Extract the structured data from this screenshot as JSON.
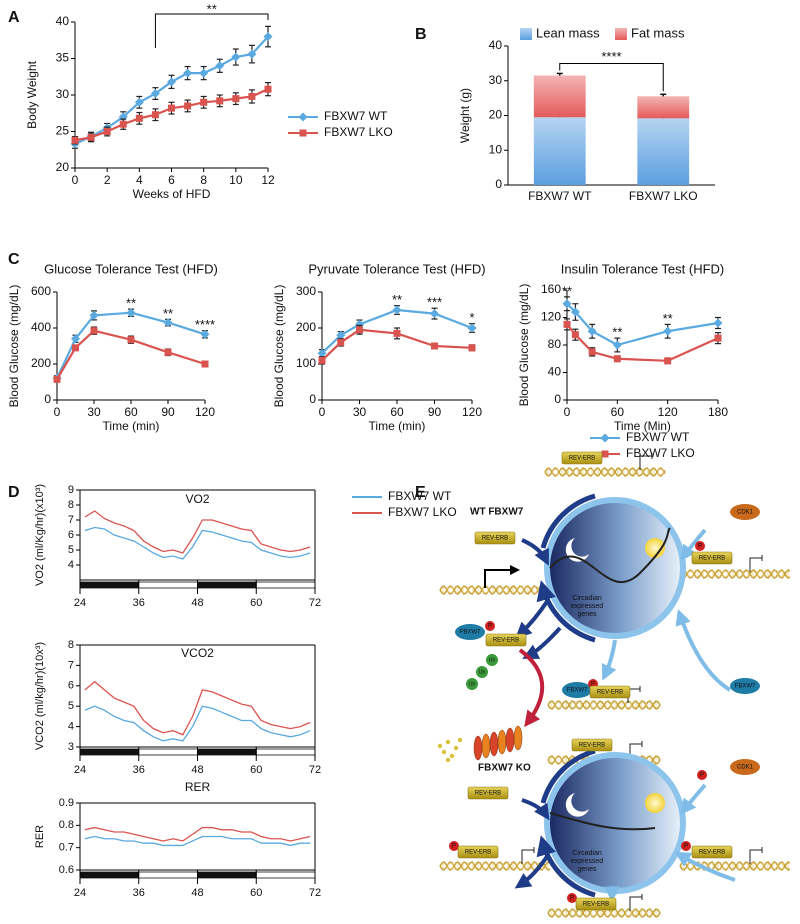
{
  "chart_data": [
    {
      "type": "line",
      "panel": "A",
      "xlabel": "Weeks of HFD",
      "ylabel": "Body Weight",
      "x": [
        0,
        1,
        2,
        3,
        4,
        5,
        6,
        7,
        8,
        9,
        10,
        11,
        12
      ],
      "xlim": [
        0,
        12
      ],
      "xticks": [
        0,
        2,
        4,
        6,
        8,
        10,
        12
      ],
      "ylim": [
        20,
        40
      ],
      "yticks": [
        20,
        25,
        30,
        35,
        40
      ],
      "legend": "right",
      "series": [
        {
          "name": "FBXW7 WT",
          "color": "#5aa9e0",
          "marker": "diamond",
          "values": [
            23.3,
            24.3,
            25.5,
            27.0,
            29.0,
            30.2,
            31.8,
            33.0,
            33.0,
            34.0,
            35.2,
            35.6,
            38.0
          ],
          "errors": [
            0.6,
            0.6,
            0.6,
            0.7,
            0.8,
            0.8,
            0.9,
            0.9,
            0.9,
            0.9,
            1.1,
            1.2,
            1.4
          ]
        },
        {
          "name": "FBXW7 LKO",
          "color": "#d9534f",
          "marker": "square",
          "values": [
            23.8,
            24.2,
            25.0,
            26.0,
            26.8,
            27.3,
            28.2,
            28.5,
            29.0,
            29.2,
            29.5,
            29.8,
            30.8
          ],
          "errors": [
            0.5,
            0.6,
            0.6,
            0.7,
            0.8,
            0.8,
            0.8,
            0.8,
            0.8,
            0.8,
            0.8,
            0.9,
            0.9
          ]
        }
      ],
      "annotations": [
        {
          "text": "**",
          "x": [
            5,
            12
          ]
        }
      ]
    },
    {
      "type": "stacked_bar",
      "panel": "B",
      "ylabel": "Weight (g)",
      "categories": [
        "FBXW7 WT",
        "FBXW7 LKO"
      ],
      "ylim": [
        0,
        40
      ],
      "yticks": [
        0,
        10,
        20,
        30,
        40
      ],
      "legend": "top",
      "series": [
        {
          "name": "Lean mass",
          "color": "#5b9fe0",
          "values": [
            19.5,
            19.2
          ],
          "errors": [
            0.3,
            0.3
          ]
        },
        {
          "name": "Fat mass",
          "color": "#e55a5a",
          "values": [
            12.0,
            6.3
          ],
          "errors": [
            0.6,
            0.6
          ]
        }
      ],
      "annotations": [
        {
          "text": "****"
        }
      ]
    },
    {
      "type": "line",
      "panel": "C",
      "title": "Glucose Tolerance Test (HFD)",
      "xlabel": "Time (min)",
      "ylabel": "Blood Glucose (mg/dL)",
      "x": [
        0,
        15,
        30,
        60,
        90,
        120
      ],
      "xlim": [
        0,
        120
      ],
      "xticks": [
        0,
        30,
        60,
        90,
        120
      ],
      "ylim": [
        0,
        600
      ],
      "yticks": [
        0,
        200,
        400,
        600
      ],
      "series": [
        {
          "color": "#5aa9e0",
          "marker": "diamond",
          "values": [
            120,
            340,
            470,
            485,
            430,
            365
          ],
          "errors": [
            15,
            20,
            25,
            20,
            18,
            20
          ]
        },
        {
          "color": "#d9534f",
          "marker": "square",
          "values": [
            115,
            290,
            385,
            335,
            265,
            200
          ],
          "errors": [
            15,
            15,
            20,
            20,
            18,
            15
          ]
        }
      ],
      "annotations": [
        {
          "text": "**",
          "x": 60
        },
        {
          "text": "**",
          "x": 90
        },
        {
          "text": "****",
          "x": 120
        }
      ]
    },
    {
      "type": "line",
      "title": "Pyruvate Tolerance Test (HFD)",
      "xlabel": "Time (min)",
      "ylabel": "Blood Glucose (mg/dL)",
      "x": [
        0,
        15,
        30,
        60,
        90,
        120
      ],
      "xlim": [
        0,
        120
      ],
      "xticks": [
        0,
        30,
        60,
        90,
        120
      ],
      "ylim": [
        0,
        300
      ],
      "yticks": [
        0,
        100,
        200,
        300
      ],
      "series": [
        {
          "color": "#5aa9e0",
          "marker": "diamond",
          "values": [
            130,
            180,
            210,
            250,
            240,
            200
          ],
          "errors": [
            10,
            10,
            12,
            12,
            15,
            12
          ]
        },
        {
          "color": "#d9534f",
          "marker": "square",
          "values": [
            110,
            160,
            195,
            185,
            150,
            145
          ],
          "errors": [
            10,
            10,
            12,
            15,
            8,
            8
          ]
        }
      ],
      "annotations": [
        {
          "text": "**",
          "x": 60
        },
        {
          "text": "***",
          "x": 90
        },
        {
          "text": "*",
          "x": 120
        }
      ]
    },
    {
      "type": "line",
      "title": "Insulin Tolerance Test (HFD)",
      "xlabel": "Time (Min)",
      "ylabel": "Blood Glucose (mg/dL)",
      "x": [
        0,
        10,
        30,
        60,
        120,
        180
      ],
      "xlim": [
        0,
        180
      ],
      "xticks": [
        0,
        60,
        120,
        180
      ],
      "ylim": [
        0,
        160
      ],
      "yticks": [
        0,
        40,
        80,
        120,
        160
      ],
      "legend": "right",
      "series": [
        {
          "name": "FBXW7 WT",
          "color": "#5aa9e0",
          "marker": "diamond",
          "values": [
            140,
            128,
            100,
            80,
            100,
            112
          ],
          "errors": [
            10,
            12,
            10,
            10,
            10,
            8
          ]
        },
        {
          "name": "FBXW7 LKO",
          "color": "#d9534f",
          "marker": "square",
          "values": [
            110,
            95,
            70,
            60,
            57,
            90
          ],
          "errors": [
            8,
            8,
            6,
            4,
            4,
            8
          ]
        }
      ],
      "annotations": [
        {
          "text": "**",
          "x": 0
        },
        {
          "text": "**",
          "x": 60
        },
        {
          "text": "**",
          "x": 120
        }
      ]
    },
    {
      "type": "line",
      "panel": "D",
      "title": "VO2",
      "ylabel": "VO2 (ml/Kg/hr)(x10³)",
      "frame": true,
      "light_dark": true,
      "legend": "top",
      "x": [
        25,
        27,
        29,
        31,
        33,
        35,
        37,
        39,
        41,
        43,
        45,
        47,
        49,
        51,
        53,
        55,
        57,
        59,
        61,
        63,
        65,
        67,
        69,
        71
      ],
      "xlim": [
        24,
        72
      ],
      "xticks": [
        24,
        36,
        48,
        60,
        72
      ],
      "ylim": [
        3,
        9
      ],
      "yticks": [
        4,
        5,
        6,
        7,
        8,
        9
      ],
      "series": [
        {
          "name": "FBXW7 WT",
          "color": "#5aa9e0",
          "values": [
            6.3,
            6.5,
            6.4,
            6.0,
            5.8,
            5.6,
            5.2,
            4.8,
            4.5,
            4.6,
            4.4,
            5.2,
            6.3,
            6.2,
            6.0,
            5.8,
            5.6,
            5.5,
            5.0,
            4.8,
            4.6,
            4.5,
            4.6,
            4.8
          ]
        },
        {
          "name": "FBXW7 LKO",
          "color": "#d9534f",
          "values": [
            7.2,
            7.6,
            7.1,
            6.8,
            6.6,
            6.3,
            5.6,
            5.2,
            4.9,
            5.0,
            4.8,
            5.8,
            7.0,
            7.0,
            6.8,
            6.6,
            6.4,
            6.3,
            5.4,
            5.2,
            5.0,
            4.9,
            5.0,
            5.2
          ]
        }
      ]
    },
    {
      "type": "line",
      "title": "VCO2",
      "ylabel": "VCO2 (ml/kg/hr)(10x³)",
      "frame": true,
      "light_dark": true,
      "x": [
        25,
        27,
        29,
        31,
        33,
        35,
        37,
        39,
        41,
        43,
        45,
        47,
        49,
        51,
        53,
        55,
        57,
        59,
        61,
        63,
        65,
        67,
        69,
        71
      ],
      "xlim": [
        24,
        72
      ],
      "xticks": [
        24,
        36,
        48,
        60,
        72
      ],
      "ylim": [
        3,
        8
      ],
      "yticks": [
        3,
        4,
        5,
        6,
        7,
        8
      ],
      "series": [
        {
          "color": "#5aa9e0",
          "values": [
            4.8,
            5.0,
            4.8,
            4.5,
            4.3,
            4.2,
            3.8,
            3.5,
            3.3,
            3.4,
            3.3,
            4.0,
            5.0,
            4.9,
            4.7,
            4.5,
            4.3,
            4.3,
            3.9,
            3.7,
            3.6,
            3.5,
            3.6,
            3.8
          ]
        },
        {
          "color": "#d9534f",
          "values": [
            5.8,
            6.2,
            5.8,
            5.4,
            5.2,
            5.0,
            4.3,
            3.9,
            3.7,
            3.8,
            3.6,
            4.5,
            5.8,
            5.7,
            5.5,
            5.3,
            5.1,
            5.0,
            4.3,
            4.1,
            4.0,
            3.9,
            4.0,
            4.2
          ]
        }
      ]
    },
    {
      "type": "line",
      "title": "RER",
      "ylabel": "RER",
      "frame": true,
      "light_dark": true,
      "x": [
        25,
        27,
        29,
        31,
        33,
        35,
        37,
        39,
        41,
        43,
        45,
        47,
        49,
        51,
        53,
        55,
        57,
        59,
        61,
        63,
        65,
        67,
        69,
        71
      ],
      "xlim": [
        24,
        72
      ],
      "xticks": [
        24,
        36,
        48,
        60,
        72
      ],
      "ylim": [
        0.6,
        0.9
      ],
      "yticks": [
        0.6,
        0.7,
        0.8,
        0.9
      ],
      "series": [
        {
          "color": "#5aa9e0",
          "values": [
            0.74,
            0.75,
            0.74,
            0.74,
            0.73,
            0.73,
            0.72,
            0.72,
            0.71,
            0.71,
            0.71,
            0.73,
            0.75,
            0.75,
            0.75,
            0.74,
            0.74,
            0.74,
            0.72,
            0.72,
            0.72,
            0.71,
            0.72,
            0.72
          ]
        },
        {
          "color": "#d9534f",
          "values": [
            0.78,
            0.79,
            0.78,
            0.77,
            0.77,
            0.76,
            0.75,
            0.74,
            0.73,
            0.74,
            0.73,
            0.76,
            0.79,
            0.79,
            0.78,
            0.78,
            0.77,
            0.77,
            0.75,
            0.74,
            0.74,
            0.73,
            0.74,
            0.75
          ]
        }
      ]
    }
  ],
  "diagram": {
    "label": "E",
    "sections": [
      {
        "title": "WT FBXW7",
        "center": [
          "Circadian",
          "expressed",
          "genes"
        ],
        "items": [
          "REV-ERB",
          "REV-ERB",
          "CDK1",
          "P",
          "REV-ERB",
          "FBXW7",
          "P",
          "REV-ERB",
          "Ub",
          "Ub",
          "Ub",
          "FBXW7",
          "P",
          "REV-ERB",
          "FBXW7"
        ]
      },
      {
        "title": "FBXW7 KO",
        "center": [
          "Circadian",
          "expressed",
          "genes"
        ],
        "items": [
          "REV-ERB",
          "REV-ERB",
          "CDK1",
          "P",
          "P",
          "REV-ERB",
          "P",
          "REV-ERB",
          "P",
          "REV-ERB"
        ]
      }
    ]
  }
}
